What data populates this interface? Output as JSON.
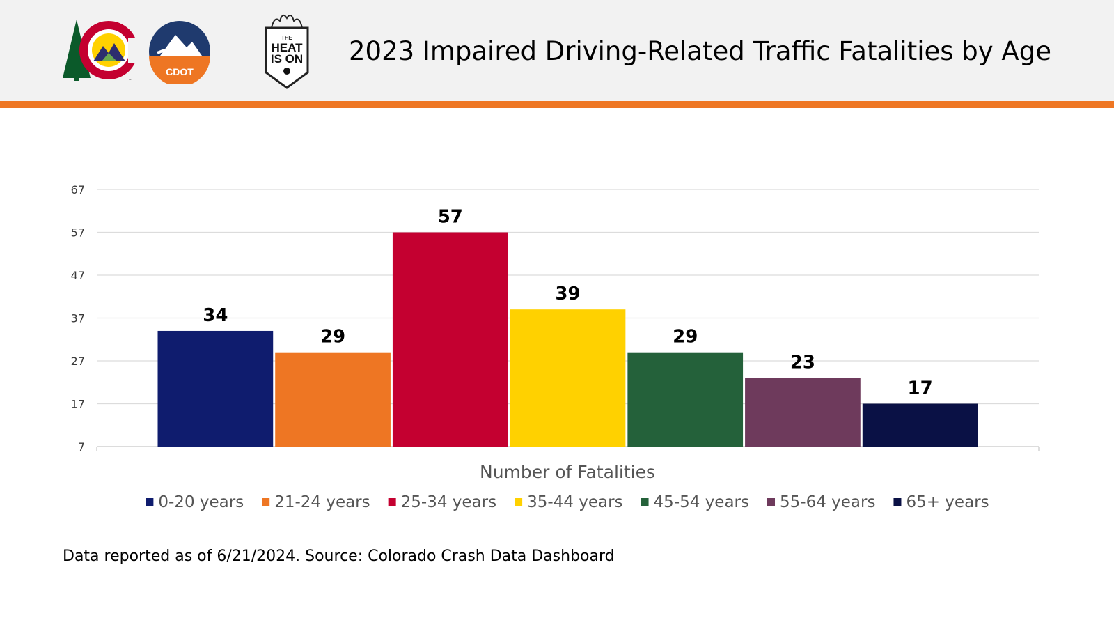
{
  "header": {
    "title": "2023 Impaired Driving-Related Traffic Fatalities by Age",
    "logos": {
      "colorado": {
        "icon": "colorado-c-logo-icon",
        "mark": "™"
      },
      "cdot": {
        "icon": "cdot-logo-icon",
        "text": "CDOT"
      },
      "heat_is_on": {
        "icon": "heat-is-on-badge-icon",
        "text": [
          "THE",
          "HEAT",
          "IS ON"
        ]
      }
    },
    "colors": {
      "background": "#f2f2f2",
      "accent_bar": "#ee7623"
    }
  },
  "chart_data": {
    "type": "bar",
    "categories": [
      "0-20 years",
      "21-24 years",
      "25-34 years",
      "35-44 years",
      "45-54 years",
      "55-64 years",
      "65+ years"
    ],
    "values": [
      34,
      29,
      57,
      39,
      29,
      23,
      17
    ],
    "colors": [
      "#0f1c6e",
      "#ee7623",
      "#c40030",
      "#ffd100",
      "#24613a",
      "#6e3a5c",
      "#0a1145"
    ],
    "title": "",
    "xlabel": "Number of Fatalities",
    "ylabel": "",
    "ylim": [
      7,
      67
    ],
    "yticks": [
      7,
      17,
      27,
      37,
      47,
      57,
      67
    ],
    "grid": true,
    "legend": "bottom"
  },
  "footnote": "Data reported as of 6/21/2024. Source: Colorado Crash Data Dashboard"
}
